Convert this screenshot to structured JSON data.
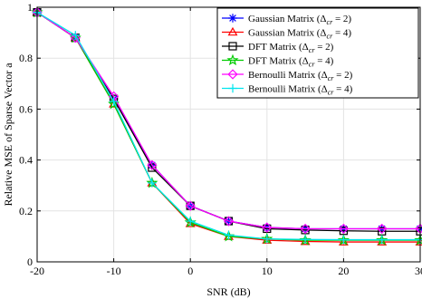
{
  "chart_data": {
    "type": "line",
    "title": "",
    "xlabel": "SNR (dB)",
    "ylabel": "Relative MSE of Sparse Vector a",
    "xlim": [
      -20,
      30
    ],
    "ylim": [
      0,
      1
    ],
    "xticks": [
      -20,
      -10,
      0,
      10,
      20,
      30
    ],
    "yticks": [
      0,
      0.2,
      0.4,
      0.6,
      0.8,
      1
    ],
    "xtick_labels": [
      "-20",
      "-10",
      "0",
      "10",
      "20",
      "30"
    ],
    "ytick_labels": [
      "0",
      "0.2",
      "0.4",
      "0.6",
      "0.8",
      "1"
    ],
    "grid": true,
    "legend_position": "top-right",
    "x": [
      -20,
      -15,
      -10,
      -5,
      0,
      5,
      10,
      15,
      20,
      25,
      30
    ],
    "series": [
      {
        "name": "Gaussian Matrix (Δcr = 2)",
        "label_main": "Gaussian Matrix (Δ",
        "label_sub": "cr",
        "label_end": " = 2)",
        "color": "#0000ff",
        "marker": "asterisk",
        "values": [
          0.98,
          0.88,
          0.64,
          0.38,
          0.22,
          0.16,
          0.135,
          0.13,
          0.13,
          0.13,
          0.13
        ]
      },
      {
        "name": "Gaussian Matrix (Δcr = 4)",
        "label_main": "Gaussian Matrix (Δ",
        "label_sub": "cr",
        "label_end": " = 4)",
        "color": "#ff0000",
        "marker": "triangle",
        "values": [
          0.98,
          0.88,
          0.62,
          0.31,
          0.15,
          0.1,
          0.085,
          0.08,
          0.078,
          0.078,
          0.078
        ]
      },
      {
        "name": "DFT Matrix (Δcr = 2)",
        "label_main": "DFT Matrix (Δ",
        "label_sub": "cr",
        "label_end": " = 2)",
        "color": "#000000",
        "marker": "square",
        "values": [
          0.98,
          0.88,
          0.64,
          0.37,
          0.22,
          0.16,
          0.13,
          0.125,
          0.122,
          0.12,
          0.12
        ]
      },
      {
        "name": "DFT Matrix (Δcr = 4)",
        "label_main": "DFT Matrix (Δ",
        "label_sub": "cr",
        "label_end": " = 4)",
        "color": "#00cc00",
        "marker": "star",
        "values": [
          0.98,
          0.88,
          0.62,
          0.31,
          0.155,
          0.1,
          0.09,
          0.085,
          0.085,
          0.085,
          0.085
        ]
      },
      {
        "name": "Bernoulli Matrix (Δcr = 2)",
        "label_main": "Bernoulli Matrix (Δ",
        "label_sub": "cr",
        "label_end": " = 2)",
        "color": "#ff00ff",
        "marker": "diamond",
        "values": [
          0.98,
          0.88,
          0.65,
          0.38,
          0.22,
          0.16,
          0.135,
          0.13,
          0.13,
          0.13,
          0.13
        ]
      },
      {
        "name": "Bernoulli Matrix (Δcr = 4)",
        "label_main": "Bernoulli Matrix (Δ",
        "label_sub": "cr",
        "label_end": " = 4)",
        "color": "#00e5ee",
        "marker": "plus",
        "values": [
          0.98,
          0.89,
          0.63,
          0.31,
          0.16,
          0.105,
          0.09,
          0.088,
          0.087,
          0.087,
          0.087
        ]
      }
    ]
  }
}
